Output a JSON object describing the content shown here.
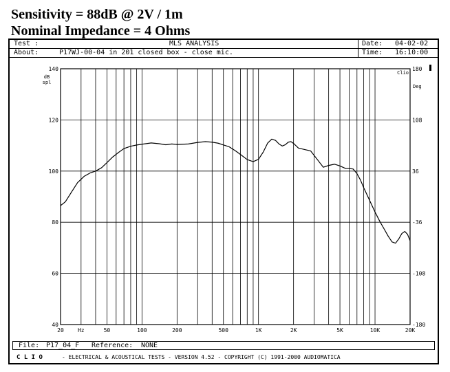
{
  "heading": {
    "line1": "Sensitivity = 88dB @ 2V / 1m",
    "line2": "Nominal Impedance = 4 Ohms"
  },
  "header": {
    "test_label": "Test :",
    "title": "MLS ANALYSIS",
    "date_label": "Date:",
    "date_value": "04-02-02",
    "about_label": "About:",
    "about_value": "P17WJ-00-04 in 201 closed box - close mic.",
    "time_label": "Time:",
    "time_value": "16:10:00"
  },
  "file_bar": {
    "file_label": "File:",
    "file_value": "P17_04_F",
    "reference_label": "Reference:",
    "reference_value": "NONE"
  },
  "footer": {
    "brand": "C L I O",
    "text": "- ELECTRICAL & ACOUSTICAL TESTS - VERSION 4.52 - COPYRIGHT (C) 1991-2000 AUDIOMATICA"
  },
  "chart_data": {
    "type": "line",
    "clio_tag": "Clio",
    "ylabel": "dB spl",
    "ylabel2": "Deg",
    "xscale": "log",
    "xlim": [
      20,
      20000
    ],
    "ylim": [
      40,
      140
    ],
    "y2lim": [
      -180,
      180
    ],
    "grid": true,
    "xtick_labels": [
      {
        "value": 20,
        "label": "20"
      },
      {
        "value": 30,
        "label": "Hz"
      },
      {
        "value": 50,
        "label": "50"
      },
      {
        "value": 100,
        "label": "100"
      },
      {
        "value": 200,
        "label": "200"
      },
      {
        "value": 500,
        "label": "500"
      },
      {
        "value": 1000,
        "label": "1K"
      },
      {
        "value": 2000,
        "label": "2K"
      },
      {
        "value": 5000,
        "label": "5K"
      },
      {
        "value": 10000,
        "label": "10K"
      },
      {
        "value": 20000,
        "label": "20K"
      }
    ],
    "ytick_labels": [
      {
        "value": 40,
        "label": "40"
      },
      {
        "value": 60,
        "label": "60"
      },
      {
        "value": 80,
        "label": "80"
      },
      {
        "value": 100,
        "label": "100"
      },
      {
        "value": 120,
        "label": "120"
      },
      {
        "value": 140,
        "label": "140"
      }
    ],
    "y2tick_labels": [
      {
        "value": -180,
        "label": "-180"
      },
      {
        "value": -108,
        "label": "-108"
      },
      {
        "value": -36,
        "label": "-36"
      },
      {
        "value": 36,
        "label": "36"
      },
      {
        "value": 108,
        "label": "108"
      },
      {
        "value": 180,
        "label": "180"
      }
    ],
    "series": [
      {
        "x": [
          20,
          22,
          25,
          28,
          32,
          36,
          40,
          45,
          50,
          56,
          63,
          70,
          80,
          90,
          100,
          120,
          140,
          160,
          180,
          200,
          250,
          300,
          350,
          400,
          450,
          500,
          560,
          630,
          700,
          800,
          900,
          1000,
          1100,
          1200,
          1300,
          1400,
          1500,
          1600,
          1700,
          1800,
          1900,
          2000,
          2200,
          2500,
          2800,
          3200,
          3600,
          4000,
          4500,
          5000,
          5600,
          6000,
          6500,
          7000,
          7500,
          8000,
          9000,
          10000,
          11000,
          12000,
          13000,
          14000,
          15000,
          16000,
          17000,
          18000,
          19000,
          20000
        ],
        "values": [
          86.5,
          88,
          92,
          95.5,
          98,
          99.3,
          100,
          101.3,
          103.3,
          105.5,
          107.3,
          108.8,
          109.7,
          110.2,
          110.5,
          111,
          110.7,
          110.3,
          110.6,
          110.4,
          110.6,
          111.2,
          111.5,
          111.3,
          110.9,
          110.2,
          109.5,
          108,
          106.5,
          104.5,
          103.7,
          104.6,
          107.5,
          111,
          112.5,
          112,
          110.6,
          109.8,
          110.3,
          111.3,
          111.5,
          110.8,
          109,
          108.4,
          107.9,
          104.5,
          101.5,
          102.2,
          102.7,
          102,
          101,
          101,
          100.8,
          99,
          96.5,
          93.5,
          88.5,
          84,
          80.3,
          77.3,
          74.5,
          72.3,
          71.8,
          73.5,
          75.6,
          76.4,
          75.3,
          72.8
        ]
      }
    ]
  }
}
